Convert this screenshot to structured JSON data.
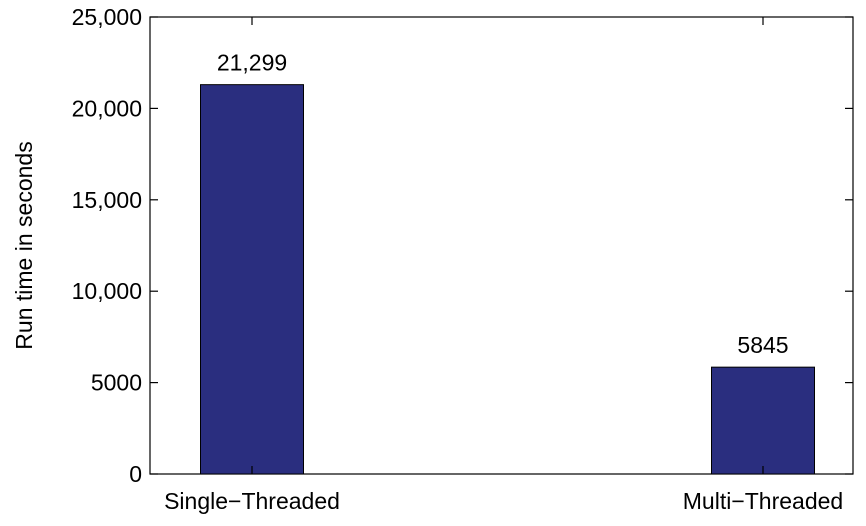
{
  "chart_data": {
    "type": "bar",
    "categories": [
      "Single−Threaded",
      "Multi−Threaded"
    ],
    "values": [
      21299,
      5845
    ],
    "data_labels": [
      "21,299",
      "5845"
    ],
    "title": "",
    "xlabel": "",
    "ylabel": "Run time in seconds",
    "ylim": [
      0,
      25000
    ],
    "yticks": [
      0,
      5000,
      10000,
      15000,
      20000,
      25000
    ],
    "ytick_labels": [
      "0",
      "5000",
      "10,000",
      "15,000",
      "20,000",
      "25,000"
    ],
    "grid": false,
    "bar_color": "#2a2e7f"
  }
}
